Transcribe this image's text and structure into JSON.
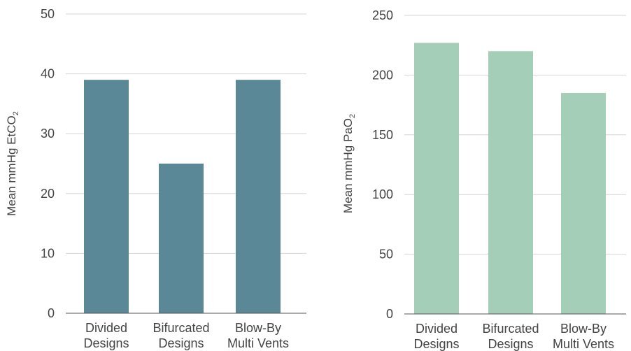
{
  "chart_data": [
    {
      "type": "bar",
      "categories": [
        [
          "Divided",
          "Designs"
        ],
        [
          "Bifurcated",
          "Designs"
        ],
        [
          "Blow-By",
          "Multi Vents"
        ]
      ],
      "values": [
        39,
        25,
        39
      ],
      "ylabel_main": "Mean mmHg EtCO",
      "ylabel_sub": "2",
      "ylim": [
        0,
        50
      ],
      "yticks": [
        0,
        10,
        20,
        30,
        40,
        50
      ],
      "yticks_labels": [
        "0",
        "10",
        "20",
        "30",
        "40",
        "50"
      ],
      "grid": true,
      "bar_color": "#5b8896"
    },
    {
      "type": "bar",
      "categories": [
        [
          "Divided",
          "Designs"
        ],
        [
          "Bifurcated",
          "Designs"
        ],
        [
          "Blow-By",
          "Multi Vents"
        ]
      ],
      "values": [
        227,
        220,
        185
      ],
      "ylabel_main": "Mean mmHg PaO",
      "ylabel_sub": "2",
      "ylim": [
        0,
        250
      ],
      "yticks": [
        0,
        50,
        100,
        150,
        200,
        250
      ],
      "yticks_labels": [
        "0",
        "50",
        "100",
        "150",
        "200",
        "250"
      ],
      "grid": true,
      "bar_color": "#a5ceb8"
    }
  ],
  "colors": {
    "grid": "#d6d6d6",
    "axis": "#555555",
    "text": "#444444"
  }
}
